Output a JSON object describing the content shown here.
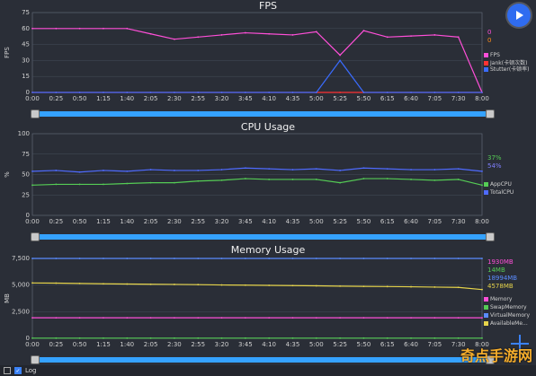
{
  "controls": {
    "play_icon": "play-icon"
  },
  "fps": {
    "title": "FPS",
    "ylabel": "FPS",
    "y_ticks": [
      "75",
      "60",
      "45",
      "30",
      "15",
      "0"
    ],
    "x_ticks": [
      "0:00",
      "0:25",
      "0:50",
      "1:15",
      "1:40",
      "2:05",
      "2:30",
      "2:55",
      "3:20",
      "3:45",
      "4:10",
      "4:35",
      "5:00",
      "5:25",
      "5:50",
      "6:15",
      "6:40",
      "7:05",
      "7:30",
      "8:00"
    ],
    "values": [
      {
        "text": "0",
        "color": "#ff4fd8"
      },
      {
        "text": "0",
        "color": "#ff8c1a"
      }
    ],
    "legend": [
      {
        "label": "FPS",
        "color": "#ff4fd8"
      },
      {
        "label": "Jank(卡顿次数)",
        "color": "#ff3333"
      },
      {
        "label": "Stutter(卡顿率)",
        "color": "#3a6cff"
      }
    ]
  },
  "cpu": {
    "title": "CPU Usage",
    "ylabel": "%",
    "y_ticks": [
      "100",
      "75",
      "50",
      "25",
      "0"
    ],
    "x_ticks": [
      "0:00",
      "0:25",
      "0:50",
      "1:15",
      "1:40",
      "2:05",
      "2:30",
      "2:55",
      "3:20",
      "3:45",
      "4:10",
      "4:35",
      "5:00",
      "5:25",
      "5:50",
      "6:15",
      "6:40",
      "7:05",
      "7:30",
      "8:00"
    ],
    "values": [
      {
        "text": "37%",
        "color": "#55cc55"
      },
      {
        "text": "54%",
        "color": "#8080ff"
      }
    ],
    "legend": [
      {
        "label": "AppCPU",
        "color": "#55cc55"
      },
      {
        "label": "TotalCPU",
        "color": "#4f6bff"
      }
    ]
  },
  "memory": {
    "title": "Memory Usage",
    "ylabel": "MB",
    "y_ticks": [
      "7,500",
      "5,000",
      "2,500",
      "0"
    ],
    "x_ticks": [
      "0:00",
      "0:25",
      "0:50",
      "1:15",
      "1:40",
      "2:05",
      "2:30",
      "2:55",
      "3:20",
      "3:45",
      "4:10",
      "4:35",
      "5:00",
      "5:25",
      "5:50",
      "6:15",
      "6:40",
      "7:05",
      "7:30",
      "8:00"
    ],
    "values": [
      {
        "text": "1930MB",
        "color": "#ff4fd8"
      },
      {
        "text": "14MB",
        "color": "#55cc55"
      },
      {
        "text": "18994MB",
        "color": "#5a8cff"
      },
      {
        "text": "4578MB",
        "color": "#e6d44b"
      }
    ],
    "legend": [
      {
        "label": "Memory",
        "color": "#ff4fd8"
      },
      {
        "label": "SwapMemory",
        "color": "#55cc55"
      },
      {
        "label": "VirtualMemory",
        "color": "#5a8cff"
      },
      {
        "label": "AvailableMe...",
        "color": "#e6d44b"
      }
    ]
  },
  "footer": {
    "log_label": "Log"
  },
  "watermark": "奇点手游网",
  "chart_data": [
    {
      "type": "line",
      "title": "FPS",
      "ylabel": "FPS",
      "ylim": [
        0,
        75
      ],
      "x": [
        "0:00",
        "0:25",
        "0:50",
        "1:15",
        "1:40",
        "2:05",
        "2:30",
        "2:55",
        "3:20",
        "3:45",
        "4:10",
        "4:35",
        "5:00",
        "5:25",
        "5:50",
        "6:15",
        "6:40",
        "7:05",
        "7:30",
        "8:00"
      ],
      "series": [
        {
          "name": "FPS",
          "values": [
            60,
            60,
            60,
            60,
            60,
            55,
            50,
            52,
            54,
            56,
            55,
            54,
            57,
            35,
            58,
            52,
            53,
            54,
            52,
            0
          ]
        },
        {
          "name": "Jank(卡顿次数)",
          "values": [
            0,
            0,
            0,
            0,
            0,
            0,
            0,
            0,
            0,
            0,
            0,
            0,
            0,
            0,
            0,
            0,
            0,
            0,
            0,
            0
          ]
        },
        {
          "name": "Stutter(卡顿率)",
          "values": [
            0,
            0,
            0,
            0,
            0,
            0,
            0,
            0,
            0,
            0,
            0,
            0,
            0,
            30,
            0,
            0,
            0,
            0,
            0,
            0
          ]
        }
      ]
    },
    {
      "type": "line",
      "title": "CPU Usage",
      "ylabel": "%",
      "ylim": [
        0,
        100
      ],
      "x": [
        "0:00",
        "0:25",
        "0:50",
        "1:15",
        "1:40",
        "2:05",
        "2:30",
        "2:55",
        "3:20",
        "3:45",
        "4:10",
        "4:35",
        "5:00",
        "5:25",
        "5:50",
        "6:15",
        "6:40",
        "7:05",
        "7:30",
        "8:00"
      ],
      "series": [
        {
          "name": "AppCPU",
          "values": [
            37,
            38,
            38,
            38,
            39,
            40,
            40,
            42,
            43,
            45,
            44,
            44,
            44,
            40,
            45,
            45,
            44,
            43,
            44,
            37
          ]
        },
        {
          "name": "TotalCPU",
          "values": [
            54,
            55,
            53,
            55,
            54,
            56,
            55,
            55,
            56,
            58,
            57,
            56,
            57,
            55,
            58,
            57,
            56,
            56,
            57,
            54
          ]
        }
      ]
    },
    {
      "type": "line",
      "title": "Memory Usage",
      "ylabel": "MB",
      "ylim": [
        0,
        7500
      ],
      "x": [
        "0:00",
        "0:25",
        "0:50",
        "1:15",
        "1:40",
        "2:05",
        "2:30",
        "2:55",
        "3:20",
        "3:45",
        "4:10",
        "4:35",
        "5:00",
        "5:25",
        "5:50",
        "6:15",
        "6:40",
        "7:05",
        "7:30",
        "8:00"
      ],
      "series": [
        {
          "name": "Memory",
          "values": [
            1930,
            1930,
            1930,
            1930,
            1930,
            1930,
            1930,
            1930,
            1930,
            1930,
            1930,
            1930,
            1930,
            1930,
            1930,
            1930,
            1930,
            1930,
            1930,
            1930
          ]
        },
        {
          "name": "SwapMemory",
          "values": [
            14,
            14,
            14,
            14,
            14,
            14,
            14,
            14,
            14,
            14,
            14,
            14,
            14,
            14,
            14,
            14,
            14,
            14,
            14,
            14
          ]
        },
        {
          "name": "VirtualMemory",
          "values": [
            18994,
            18994,
            18994,
            18994,
            18994,
            18994,
            18994,
            18994,
            18994,
            18994,
            18994,
            18994,
            18994,
            18994,
            18994,
            18994,
            18994,
            18994,
            18994,
            18994
          ]
        },
        {
          "name": "AvailableMe...",
          "values": [
            5200,
            5180,
            5150,
            5120,
            5100,
            5080,
            5060,
            5040,
            5010,
            4990,
            4970,
            4950,
            4930,
            4900,
            4880,
            4860,
            4840,
            4810,
            4780,
            4578
          ]
        }
      ]
    }
  ]
}
